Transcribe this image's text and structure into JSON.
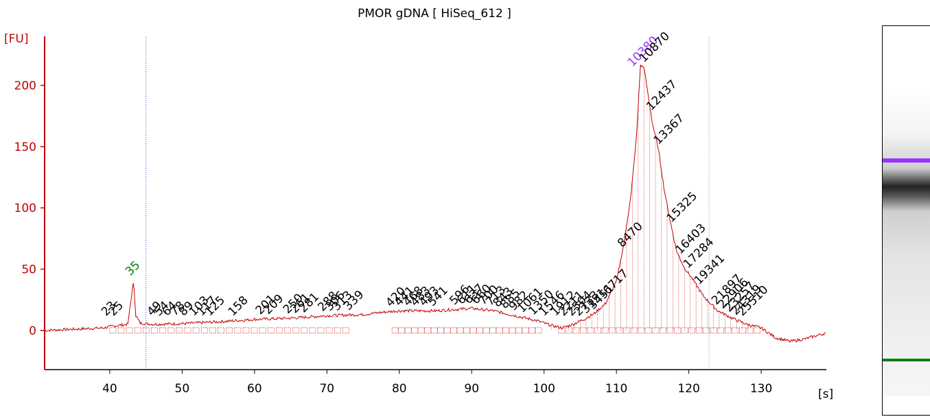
{
  "chart_data": {
    "type": "line",
    "title": "PMOR gDNA  [ HiSeq_612 ]",
    "ylabel": "[FU]",
    "xlabel": "[s]",
    "x_ticks": [
      "40",
      "50",
      "60",
      "70",
      "80",
      "90",
      "100",
      "110",
      "120",
      "130"
    ],
    "y_ticks": [
      "0",
      "50",
      "100",
      "150",
      "200"
    ],
    "xlim": [
      31,
      139
    ],
    "ylim": [
      -32,
      240
    ],
    "marker_lower": {
      "x": 45,
      "label": "35",
      "color": "#008000"
    },
    "marker_upper": {
      "x": 122.8,
      "label": "10380",
      "color": "#9933ff"
    },
    "series": [
      {
        "color": "#c00000",
        "x": [
          31,
          35,
          39,
          41,
          42.5,
          43.0,
          43.3,
          43.6,
          44.2,
          46,
          50,
          55,
          60,
          65,
          70,
          75,
          78,
          80,
          85,
          90,
          93,
          96,
          99,
          101,
          102.5,
          104,
          105.5,
          107,
          108.5,
          110,
          111,
          112,
          112.8,
          113.3,
          113.8,
          114.3,
          115,
          115.8,
          116.6,
          117.4,
          118.3,
          119.3,
          120.5,
          122,
          124,
          126,
          128,
          130,
          132,
          134,
          136,
          139
        ],
        "y": [
          0,
          1,
          2,
          4,
          5,
          28,
          40,
          12,
          6,
          5,
          5.5,
          7,
          9,
          10,
          12,
          13,
          15,
          16,
          16,
          18,
          16,
          12,
          8,
          4,
          2,
          5,
          9,
          14,
          22,
          40,
          70,
          110,
          160,
          216,
          215,
          195,
          168,
          148,
          115,
          90,
          65,
          52,
          42,
          28,
          16,
          10,
          5,
          2,
          -6,
          -9,
          -7,
          -2
        ]
      }
    ],
    "peak_labels": [
      "23",
      "25",
      "49",
      "54",
      "64",
      "78",
      "89",
      "103",
      "117",
      "125",
      "158",
      "201",
      "209",
      "250",
      "261",
      "281",
      "288",
      "306",
      "313",
      "339",
      "420",
      "441",
      "468",
      "483",
      "493",
      "541",
      "596",
      "611",
      "637",
      "660",
      "700",
      "713",
      "843",
      "885",
      "982",
      "1061",
      "1350",
      "1546",
      "1912",
      "2211",
      "2504",
      "2733",
      "3151",
      "3451",
      "6717",
      "8470",
      "10870",
      "12437",
      "13367",
      "15325",
      "16403",
      "17284",
      "19341",
      "21897",
      "22906",
      "23257",
      "24319",
      "25510"
    ]
  },
  "gel": {
    "upper_marker_color": "#9933ff",
    "lower_marker_color": "#008000"
  }
}
